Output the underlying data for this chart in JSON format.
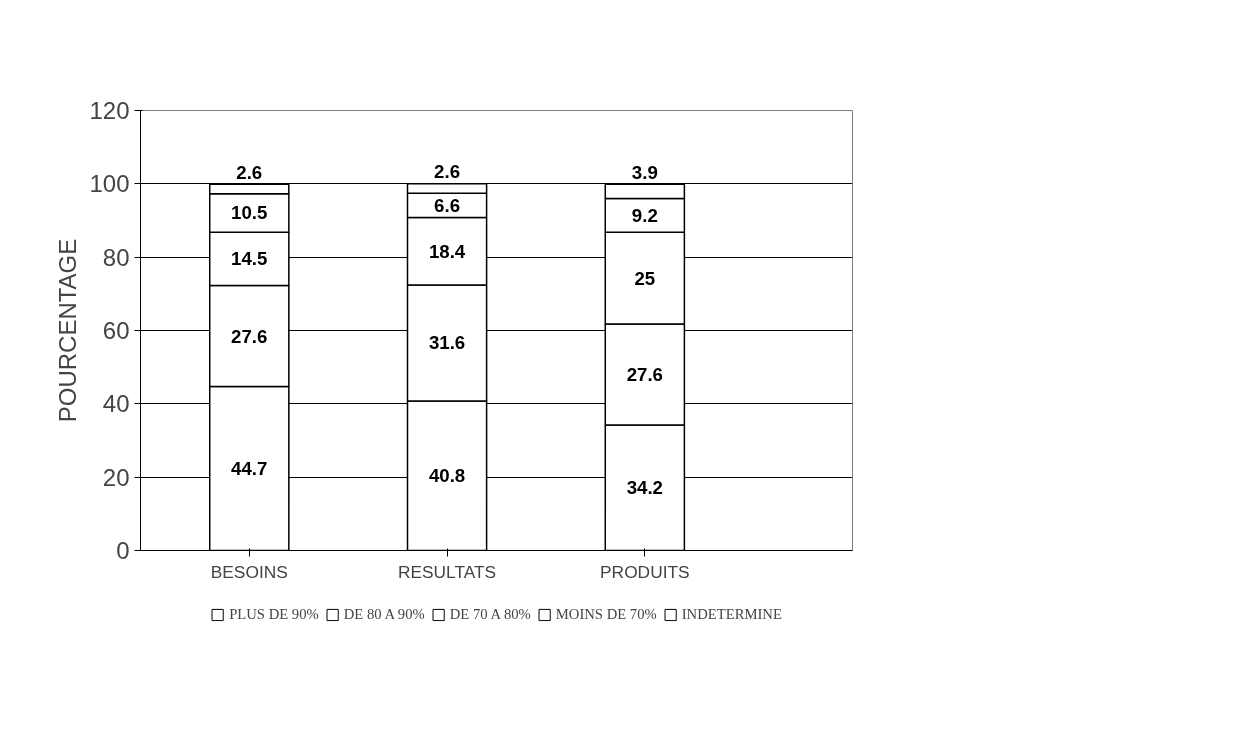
{
  "chart_data": {
    "type": "bar",
    "stacked": true,
    "ylabel": "POURCENTAGE",
    "categories": [
      "BESOINS",
      "RESULTATS",
      "PRODUITS"
    ],
    "series": [
      {
        "name": "PLUS DE 90%",
        "color": "#ffffff",
        "values": [
          44.7,
          40.8,
          34.2
        ]
      },
      {
        "name": "DE 80 A 90%",
        "color": "#ffffff",
        "values": [
          27.6,
          31.6,
          27.6
        ]
      },
      {
        "name": "DE 70 A 80%",
        "color": "#ffffff",
        "values": [
          14.5,
          18.4,
          25
        ]
      },
      {
        "name": "MOINS DE 70%",
        "color": "#ffffff",
        "values": [
          10.5,
          6.6,
          9.2
        ]
      },
      {
        "name": "INDETERMINE",
        "color": "#ffffff",
        "values": [
          2.6,
          2.6,
          3.9
        ]
      }
    ],
    "ylim": [
      0,
      120
    ],
    "yticks": [
      0,
      20,
      40,
      60,
      80,
      100,
      120
    ],
    "grid": "y",
    "legend": "bottom",
    "data_labels": true
  }
}
